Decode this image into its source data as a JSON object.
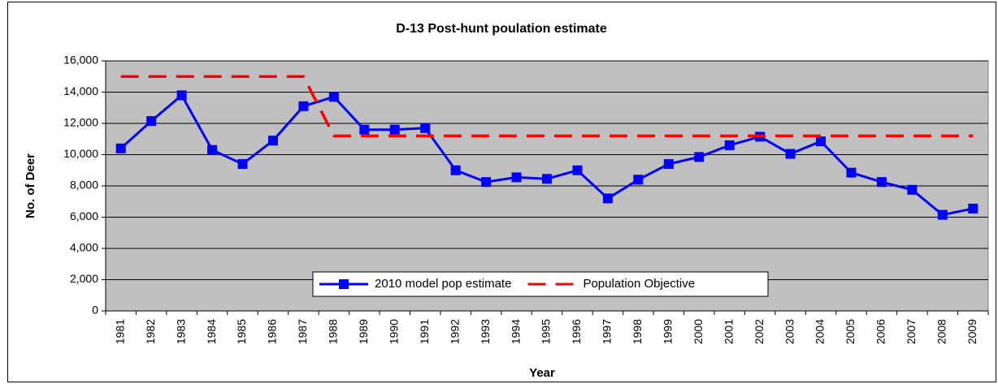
{
  "chart_data": {
    "type": "line",
    "title": "D-13 Post-hunt poulation estimate",
    "x_label": "Year",
    "y_label": "No. of Deer",
    "categories": [
      "1981",
      "1982",
      "1983",
      "1984",
      "1985",
      "1986",
      "1987",
      "1988",
      "1989",
      "1990",
      "1991",
      "1992",
      "1993",
      "1994",
      "1995",
      "1996",
      "1997",
      "1998",
      "1999",
      "2000",
      "2001",
      "2002",
      "2003",
      "2004",
      "2005",
      "2006",
      "2007",
      "2008",
      "2009"
    ],
    "series": [
      {
        "name": "2010 model pop estimate",
        "color": "#0000ff",
        "marker": "square",
        "values": [
          10400,
          12150,
          13800,
          10300,
          9400,
          10900,
          13100,
          13700,
          11600,
          11600,
          11700,
          9000,
          8250,
          8550,
          8450,
          9000,
          7200,
          8400,
          9400,
          9850,
          10600,
          11150,
          10050,
          10850,
          8850,
          8250,
          7750,
          6150,
          6550
        ]
      },
      {
        "name": "Population Objective",
        "color": "#ff0000",
        "dashed": true,
        "values": [
          15000,
          15000,
          15000,
          15000,
          15000,
          15000,
          15000,
          11200,
          11200,
          11200,
          11200,
          11200,
          11200,
          11200,
          11200,
          11200,
          11200,
          11200,
          11200,
          11200,
          11200,
          11200,
          11200,
          11200,
          11200,
          11200,
          11200,
          11200,
          11200
        ]
      }
    ],
    "ylim": [
      0,
      16000
    ],
    "yticks": [
      0,
      {
        "value": 2000,
        "label": "2,000"
      },
      {
        "value": 4000,
        "label": "4,000"
      },
      {
        "value": 6000,
        "label": "6,000"
      },
      {
        "value": 8000,
        "label": "8,000"
      },
      {
        "value": 10000,
        "label": "10,000"
      },
      {
        "value": 12000,
        "label": "12,000"
      },
      {
        "value": 14000,
        "label": "14,000"
      },
      {
        "value": 16000,
        "label": "16,000"
      }
    ],
    "grid": true,
    "legend": "bottom",
    "plot_background": "#c0c0c0"
  }
}
